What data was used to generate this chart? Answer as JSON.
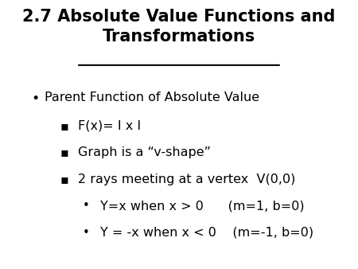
{
  "title_line1": "2.7 Absolute Value Functions and",
  "title_line2": "Transformations",
  "background_color": "#ffffff",
  "text_color": "#000000",
  "title_fontsize": 15,
  "body_fontsize": 11.5,
  "bullet1": "Parent Function of Absolute Value",
  "sub1": "F(x)= I x I",
  "sub2": "Graph is a “v-shape”",
  "sub3": "2 rays meeting at a vertex  V(0,0)",
  "subsub1": "Y=x when x > 0      (m=1, b=0)",
  "subsub2": "Y = -x when x < 0    (m=-1, b=0)"
}
